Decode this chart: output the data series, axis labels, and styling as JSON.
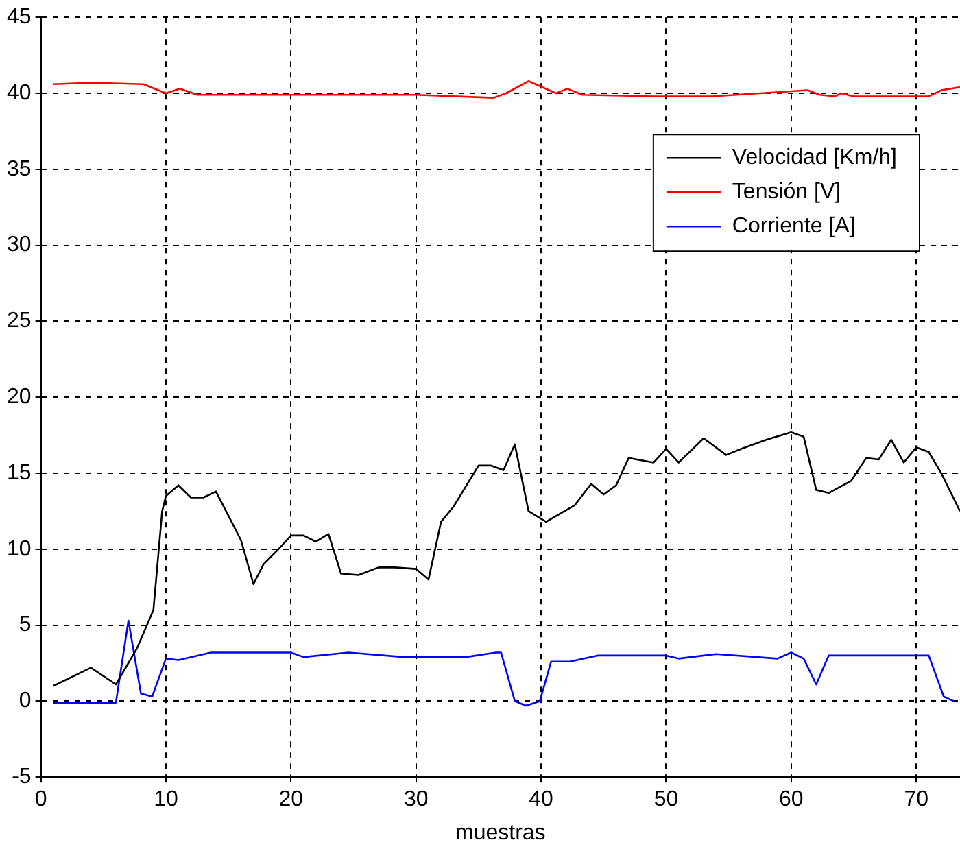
{
  "chart_data": {
    "type": "line",
    "xlabel": "muestras",
    "xlim": [
      0,
      73.5
    ],
    "xticks": [
      0,
      10,
      20,
      30,
      40,
      50,
      60,
      70
    ],
    "ylim": [
      -5,
      45
    ],
    "yticks": [
      -5,
      0,
      5,
      10,
      15,
      20,
      25,
      30,
      35,
      40,
      45
    ],
    "grid": true,
    "legend": "top right",
    "marker": "none",
    "line_style": "solid",
    "series": [
      {
        "name": "Velocidad [Km/h]",
        "color": "#000000",
        "x": [
          1,
          4,
          6,
          7.7,
          9,
          9.7,
          10,
          11,
          12,
          13,
          14,
          16,
          17,
          17.8,
          19,
          20,
          21,
          22,
          23,
          24,
          25.4,
          27,
          28.3,
          30,
          31,
          32,
          33,
          35,
          36,
          37,
          37.9,
          39,
          40.4,
          42.7,
          44,
          45,
          46,
          47,
          49,
          50,
          51,
          53,
          54.8,
          56,
          58,
          60,
          61,
          62,
          63,
          64.8,
          66,
          67,
          68,
          69,
          70,
          71,
          72,
          73.5
        ],
        "values": [
          1.0,
          2.2,
          1.1,
          3.5,
          6.0,
          12.5,
          13.5,
          14.2,
          13.4,
          13.4,
          13.8,
          10.6,
          7.7,
          9.0,
          10.0,
          10.9,
          10.9,
          10.5,
          11.0,
          8.4,
          8.3,
          8.8,
          8.8,
          8.7,
          8.0,
          11.8,
          12.8,
          15.5,
          15.5,
          15.2,
          16.9,
          12.5,
          11.8,
          12.9,
          14.3,
          13.6,
          14.2,
          16.0,
          15.7,
          16.6,
          15.7,
          17.3,
          16.2,
          16.6,
          17.2,
          17.7,
          17.4,
          13.9,
          13.7,
          14.5,
          16.0,
          15.9,
          17.2,
          15.7,
          16.7,
          16.4,
          15.0,
          12.5
        ]
      },
      {
        "name": "Tensión [V]",
        "color": "#ff0000",
        "x": [
          1,
          4,
          8.2,
          10,
          11.1,
          12.5,
          20,
          30,
          36.2,
          37.2,
          39,
          41.2,
          42.1,
          43.3,
          49,
          53.7,
          61.3,
          62.3,
          63.5,
          64,
          65,
          71,
          72,
          73.5
        ],
        "values": [
          40.6,
          40.7,
          40.6,
          40.0,
          40.3,
          39.9,
          39.9,
          39.9,
          39.7,
          40.0,
          40.8,
          40.0,
          40.3,
          39.9,
          39.8,
          39.8,
          40.2,
          39.9,
          39.8,
          40.0,
          39.8,
          39.8,
          40.2,
          40.4
        ]
      },
      {
        "name": "Corriente [A]",
        "color": "#0000ff",
        "x": [
          1,
          6,
          7,
          8,
          8.9,
          10,
          11,
          13.6,
          20,
          21,
          24.6,
          29,
          34,
          36.4,
          36.8,
          37.9,
          38.8,
          39.9,
          40.8,
          42.3,
          44.5,
          50,
          51,
          54,
          58.9,
          60,
          61,
          62,
          63,
          71,
          72.2,
          73
        ],
        "values": [
          -0.1,
          -0.1,
          5.3,
          0.5,
          0.3,
          2.8,
          2.7,
          3.2,
          3.2,
          2.9,
          3.2,
          2.9,
          2.9,
          3.2,
          3.2,
          0,
          -0.3,
          0,
          2.6,
          2.6,
          3.0,
          3.0,
          2.8,
          3.1,
          2.8,
          3.2,
          2.8,
          1.1,
          3.0,
          3.0,
          0.3,
          0
        ]
      }
    ]
  }
}
